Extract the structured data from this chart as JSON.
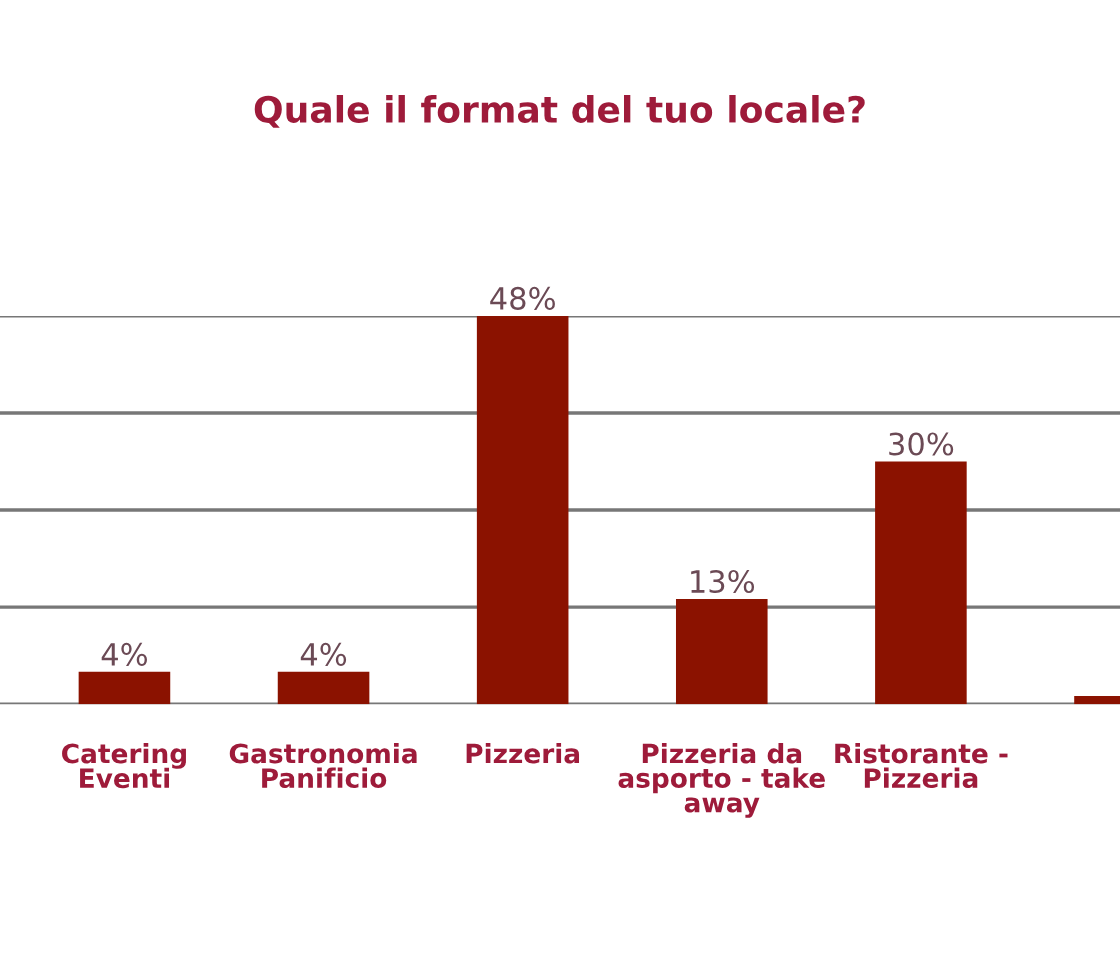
{
  "chart_data": {
    "type": "bar",
    "title": "Quale il format del tuo locale?",
    "categories": [
      "Catering\nEventi",
      "Gastronomia\nPanificio",
      "Pizzeria",
      "Pizzeria da\nasporto - take\naway",
      "Ristorante -\nPizzeria",
      null
    ],
    "values": [
      4,
      4,
      48,
      13,
      30,
      1
    ],
    "value_labels": [
      "4%",
      "4%",
      "48%",
      "13%",
      "30%",
      null
    ],
    "color": "#8b1200",
    "ylim": [
      0,
      48
    ],
    "yticks": [
      {
        "value": 0,
        "label": null
      },
      {
        "value": 12,
        "label": null
      },
      {
        "value": 24,
        "label": null
      },
      {
        "value": 36,
        "label": null
      },
      {
        "value": 48,
        "label": null
      }
    ],
    "tick_labels": "x",
    "grid": "y"
  }
}
